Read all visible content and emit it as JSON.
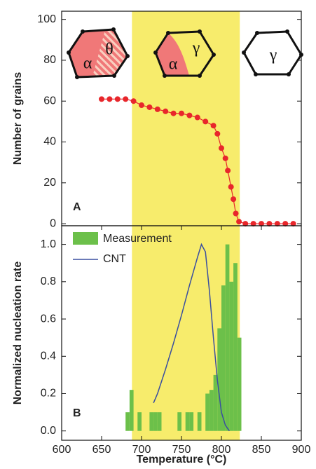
{
  "chart_data": [
    {
      "type": "line",
      "panel_label": "A",
      "ylabel": "Number of grains",
      "xlim": [
        600,
        900
      ],
      "ylim": [
        -1,
        104
      ],
      "yticks": [
        0,
        20,
        40,
        60,
        80,
        100
      ],
      "highlight_range": [
        688,
        823
      ],
      "highlight_color": "#f7ec6c",
      "color": "#e8262b",
      "markers": true,
      "x": [
        650,
        660,
        670,
        680,
        690,
        700,
        710,
        720,
        730,
        740,
        750,
        760,
        770,
        780,
        790,
        795,
        800,
        805,
        808,
        812,
        815,
        818,
        822,
        830,
        840,
        850,
        860,
        870,
        880,
        890
      ],
      "values": [
        61,
        61,
        61,
        61,
        60,
        58,
        57,
        56,
        55,
        54,
        54,
        53,
        52,
        50,
        48,
        44,
        37,
        32,
        26,
        18,
        12,
        5,
        1,
        0,
        0,
        0,
        0,
        0,
        0,
        0
      ],
      "insets": [
        {
          "labels": [
            "α",
            "θ"
          ]
        },
        {
          "labels": [
            "α",
            "γ"
          ]
        },
        {
          "labels": [
            "γ"
          ]
        }
      ]
    },
    {
      "type": "histogram",
      "panel_label": "B",
      "ylabel": "Normalized nucleation rate",
      "xlabel": "Temperature (°C)",
      "xlim": [
        600,
        900
      ],
      "ylim": [
        -0.05,
        1.1
      ],
      "xticks": [
        600,
        650,
        700,
        750,
        800,
        850,
        900
      ],
      "yticks": [
        {
          "value": 0,
          "label": "0.0"
        },
        {
          "value": 0.2,
          "label": "0.2"
        },
        {
          "value": 0.4,
          "label": "0.4"
        },
        {
          "value": 0.6,
          "label": "0.6"
        },
        {
          "value": 0.8,
          "label": "0.8"
        },
        {
          "value": 1,
          "label": "1.0"
        }
      ],
      "highlight_range": [
        688,
        823
      ],
      "highlight_color": "#f7ec6c",
      "bins": [
        680,
        685,
        690,
        695,
        700,
        705,
        710,
        715,
        720,
        725,
        730,
        735,
        740,
        745,
        750,
        755,
        760,
        765,
        770,
        775,
        780,
        785,
        790,
        795,
        800,
        805,
        810,
        815,
        820,
        825
      ],
      "series": [
        {
          "name": "Measurement",
          "color": "#6cc04a",
          "values": [
            0.1,
            0.22,
            0,
            0.1,
            0,
            0,
            0.1,
            0.1,
            0.1,
            0,
            0,
            0,
            0,
            0.1,
            0,
            0.1,
            0.1,
            0,
            0.1,
            0,
            0.2,
            0.22,
            0.3,
            0.55,
            0.78,
            1.0,
            0.8,
            0.9,
            0.5
          ]
        },
        {
          "name": "CNT",
          "type": "line",
          "color": "#3a4fa0",
          "x": [
            715,
            720,
            730,
            740,
            750,
            760,
            770,
            775,
            780,
            785,
            790,
            795,
            800,
            805,
            810
          ],
          "values": [
            0.15,
            0.2,
            0.33,
            0.47,
            0.62,
            0.78,
            0.93,
            1.0,
            0.96,
            0.75,
            0.5,
            0.27,
            0.1,
            0.03,
            0
          ]
        }
      ]
    }
  ]
}
